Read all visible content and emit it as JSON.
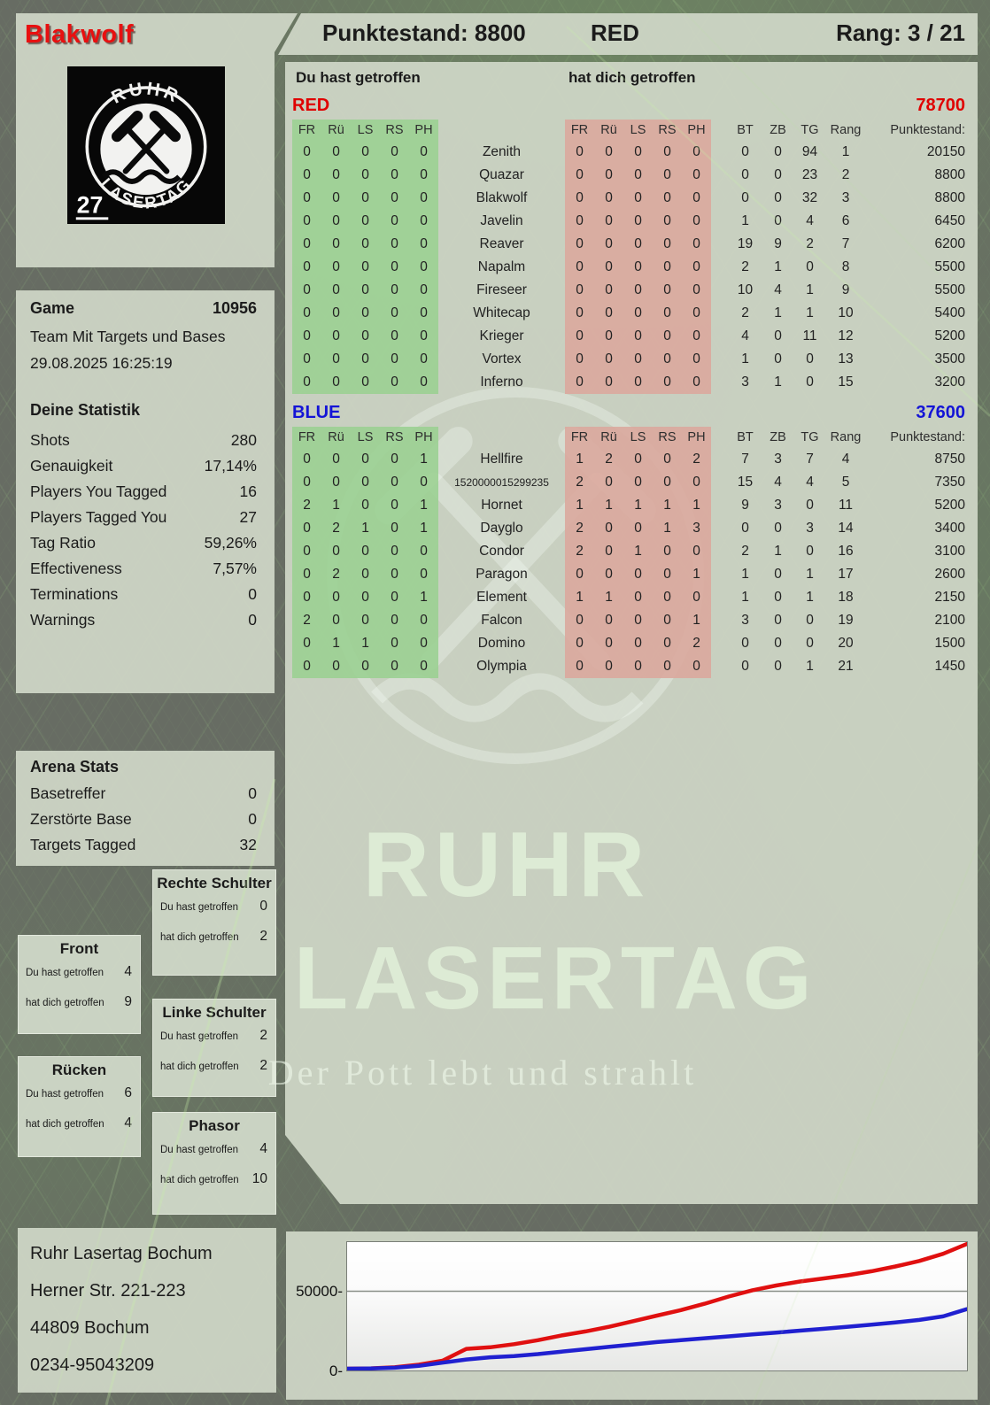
{
  "header": {
    "player": "Blakwolf",
    "score": "Punktestand: 8800",
    "team": "RED",
    "rank": "Rang: 3 / 21"
  },
  "logo": {
    "arc_top": "RUHR",
    "arc_bottom": "LASERTAG",
    "badge": "27"
  },
  "game": {
    "label": "Game",
    "number": "10956",
    "mode": "Team Mit Targets und Bases",
    "datetime": "29.08.2025 16:25:19"
  },
  "stats": {
    "title": "Deine Statistik",
    "rows": [
      {
        "label": "Shots",
        "value": "280"
      },
      {
        "label": "Genauigkeit",
        "value": "17,14%"
      },
      {
        "label": "Players You Tagged",
        "value": "16"
      },
      {
        "label": "Players Tagged You",
        "value": "27"
      },
      {
        "label": "Tag Ratio",
        "value": "59,26%"
      },
      {
        "label": "Effectiveness",
        "value": "7,57%"
      },
      {
        "label": "Terminations",
        "value": "0"
      },
      {
        "label": "Warnings",
        "value": "0"
      }
    ]
  },
  "arena": {
    "title": "Arena Stats",
    "rows": [
      {
        "label": "Basetreffer",
        "value": "0"
      },
      {
        "label": "Zerstörte Base",
        "value": "0"
      },
      {
        "label": "Targets Tagged",
        "value": "32"
      }
    ]
  },
  "bodyparts": {
    "you_label": "Du hast getroffen",
    "them_label": "hat dich getroffen",
    "boxes": [
      {
        "title": "Front",
        "you": "4",
        "them": "9"
      },
      {
        "title": "Rücken",
        "you": "6",
        "them": "4"
      },
      {
        "title": "Rechte Schulter",
        "you": "0",
        "them": "2"
      },
      {
        "title": "Linke Schulter",
        "you": "2",
        "them": "2"
      },
      {
        "title": "Phasor",
        "you": "4",
        "them": "10"
      }
    ]
  },
  "tables": {
    "you_hit_label": "Du hast getroffen",
    "hit_you_label": "hat dich getroffen",
    "col_headers": {
      "left": [
        "FR",
        "Rü",
        "LS",
        "RS",
        "PH"
      ],
      "right": [
        "FR",
        "Rü",
        "LS",
        "RS",
        "PH"
      ],
      "stats": [
        "BT",
        "ZB",
        "TG",
        "Rang",
        "Punktestand:"
      ]
    },
    "red": {
      "label": "RED",
      "total": "78700",
      "color": "#e00000",
      "players": [
        {
          "name": "Zenith",
          "left": [
            "0",
            "0",
            "0",
            "0",
            "0"
          ],
          "right": [
            "0",
            "0",
            "0",
            "0",
            "0"
          ],
          "bt": "0",
          "zb": "0",
          "tg": "94",
          "rang": "1",
          "points": "20150"
        },
        {
          "name": "Quazar",
          "left": [
            "0",
            "0",
            "0",
            "0",
            "0"
          ],
          "right": [
            "0",
            "0",
            "0",
            "0",
            "0"
          ],
          "bt": "0",
          "zb": "0",
          "tg": "23",
          "rang": "2",
          "points": "8800"
        },
        {
          "name": "Blakwolf",
          "left": [
            "0",
            "0",
            "0",
            "0",
            "0"
          ],
          "right": [
            "0",
            "0",
            "0",
            "0",
            "0"
          ],
          "bt": "0",
          "zb": "0",
          "tg": "32",
          "rang": "3",
          "points": "8800"
        },
        {
          "name": "Javelin",
          "left": [
            "0",
            "0",
            "0",
            "0",
            "0"
          ],
          "right": [
            "0",
            "0",
            "0",
            "0",
            "0"
          ],
          "bt": "1",
          "zb": "0",
          "tg": "4",
          "rang": "6",
          "points": "6450"
        },
        {
          "name": "Reaver",
          "left": [
            "0",
            "0",
            "0",
            "0",
            "0"
          ],
          "right": [
            "0",
            "0",
            "0",
            "0",
            "0"
          ],
          "bt": "19",
          "zb": "9",
          "tg": "2",
          "rang": "7",
          "points": "6200"
        },
        {
          "name": "Napalm",
          "left": [
            "0",
            "0",
            "0",
            "0",
            "0"
          ],
          "right": [
            "0",
            "0",
            "0",
            "0",
            "0"
          ],
          "bt": "2",
          "zb": "1",
          "tg": "0",
          "rang": "8",
          "points": "5500"
        },
        {
          "name": "Fireseer",
          "left": [
            "0",
            "0",
            "0",
            "0",
            "0"
          ],
          "right": [
            "0",
            "0",
            "0",
            "0",
            "0"
          ],
          "bt": "10",
          "zb": "4",
          "tg": "1",
          "rang": "9",
          "points": "5500"
        },
        {
          "name": "Whitecap",
          "left": [
            "0",
            "0",
            "0",
            "0",
            "0"
          ],
          "right": [
            "0",
            "0",
            "0",
            "0",
            "0"
          ],
          "bt": "2",
          "zb": "1",
          "tg": "1",
          "rang": "10",
          "points": "5400"
        },
        {
          "name": "Krieger",
          "left": [
            "0",
            "0",
            "0",
            "0",
            "0"
          ],
          "right": [
            "0",
            "0",
            "0",
            "0",
            "0"
          ],
          "bt": "4",
          "zb": "0",
          "tg": "11",
          "rang": "12",
          "points": "5200"
        },
        {
          "name": "Vortex",
          "left": [
            "0",
            "0",
            "0",
            "0",
            "0"
          ],
          "right": [
            "0",
            "0",
            "0",
            "0",
            "0"
          ],
          "bt": "1",
          "zb": "0",
          "tg": "0",
          "rang": "13",
          "points": "3500"
        },
        {
          "name": "Inferno",
          "left": [
            "0",
            "0",
            "0",
            "0",
            "0"
          ],
          "right": [
            "0",
            "0",
            "0",
            "0",
            "0"
          ],
          "bt": "3",
          "zb": "1",
          "tg": "0",
          "rang": "15",
          "points": "3200"
        }
      ]
    },
    "blue": {
      "label": "BLUE",
      "total": "37600",
      "color": "#1414d6",
      "players": [
        {
          "name": "Hellfire",
          "left": [
            "0",
            "0",
            "0",
            "0",
            "1"
          ],
          "right": [
            "1",
            "2",
            "0",
            "0",
            "2"
          ],
          "bt": "7",
          "zb": "3",
          "tg": "7",
          "rang": "4",
          "points": "8750"
        },
        {
          "name": "1520000015299235",
          "left": [
            "0",
            "0",
            "0",
            "0",
            "0"
          ],
          "right": [
            "2",
            "0",
            "0",
            "0",
            "0"
          ],
          "bt": "15",
          "zb": "4",
          "tg": "4",
          "rang": "5",
          "points": "7350"
        },
        {
          "name": "Hornet",
          "left": [
            "2",
            "1",
            "0",
            "0",
            "1"
          ],
          "right": [
            "1",
            "1",
            "1",
            "1",
            "1"
          ],
          "bt": "9",
          "zb": "3",
          "tg": "0",
          "rang": "11",
          "points": "5200"
        },
        {
          "name": "Dayglo",
          "left": [
            "0",
            "2",
            "1",
            "0",
            "1"
          ],
          "right": [
            "2",
            "0",
            "0",
            "1",
            "3"
          ],
          "bt": "0",
          "zb": "0",
          "tg": "3",
          "rang": "14",
          "points": "3400"
        },
        {
          "name": "Condor",
          "left": [
            "0",
            "0",
            "0",
            "0",
            "0"
          ],
          "right": [
            "2",
            "0",
            "1",
            "0",
            "0"
          ],
          "bt": "2",
          "zb": "1",
          "tg": "0",
          "rang": "16",
          "points": "3100"
        },
        {
          "name": "Paragon",
          "left": [
            "0",
            "2",
            "0",
            "0",
            "0"
          ],
          "right": [
            "0",
            "0",
            "0",
            "0",
            "1"
          ],
          "bt": "1",
          "zb": "0",
          "tg": "1",
          "rang": "17",
          "points": "2600"
        },
        {
          "name": "Element",
          "left": [
            "0",
            "0",
            "0",
            "0",
            "1"
          ],
          "right": [
            "1",
            "1",
            "0",
            "0",
            "0"
          ],
          "bt": "1",
          "zb": "0",
          "tg": "1",
          "rang": "18",
          "points": "2150"
        },
        {
          "name": "Falcon",
          "left": [
            "2",
            "0",
            "0",
            "0",
            "0"
          ],
          "right": [
            "0",
            "0",
            "0",
            "0",
            "1"
          ],
          "bt": "3",
          "zb": "0",
          "tg": "0",
          "rang": "19",
          "points": "2100"
        },
        {
          "name": "Domino",
          "left": [
            "0",
            "1",
            "1",
            "0",
            "0"
          ],
          "right": [
            "0",
            "0",
            "0",
            "0",
            "2"
          ],
          "bt": "0",
          "zb": "0",
          "tg": "0",
          "rang": "20",
          "points": "1500"
        },
        {
          "name": "Olympia",
          "left": [
            "0",
            "0",
            "0",
            "0",
            "0"
          ],
          "right": [
            "0",
            "0",
            "0",
            "0",
            "0"
          ],
          "bt": "0",
          "zb": "0",
          "tg": "1",
          "rang": "21",
          "points": "1450"
        }
      ]
    }
  },
  "watermark": {
    "line1": "RUHR",
    "line2": "LASERTAG",
    "slogan": "Der Pott lebt und strahlt"
  },
  "footer": {
    "lines": [
      "Ruhr Lasertag Bochum",
      "Herner Str. 221-223",
      "44809 Bochum",
      "0234-95043209"
    ]
  },
  "colors": {
    "accent_red": "#e00000",
    "accent_blue": "#1414d6",
    "green_block": "#9ad091",
    "red_block": "#dba79c",
    "panel": "#d0d8c8",
    "background": "#676c63"
  },
  "chart_data": {
    "type": "line",
    "title": "",
    "xlabel": "",
    "ylabel": "",
    "x_range": [
      0,
      100
    ],
    "ylim": [
      0,
      81000
    ],
    "yticks": [
      0,
      50000
    ],
    "ytick_labels": [
      "0-",
      "50000-"
    ],
    "grid": "horizontal gridline at 50000 only",
    "legend_position": "none",
    "series": [
      {
        "name": "RED",
        "color": "#e01010",
        "values": [
          0,
          200,
          900,
          2500,
          5000,
          12500,
          13500,
          15500,
          18000,
          21000,
          23500,
          26500,
          30000,
          33500,
          37000,
          41000,
          45500,
          49500,
          52500,
          55000,
          57000,
          59000,
          61500,
          64500,
          68000,
          72500,
          78700
        ]
      },
      {
        "name": "BLUE",
        "color": "#2020d0",
        "values": [
          0,
          150,
          600,
          1800,
          3800,
          5800,
          7200,
          8000,
          9200,
          10800,
          12300,
          13800,
          15300,
          16800,
          18000,
          19200,
          20400,
          21600,
          22800,
          24000,
          25200,
          26500,
          27800,
          29200,
          30800,
          33000,
          37600
        ]
      }
    ]
  }
}
